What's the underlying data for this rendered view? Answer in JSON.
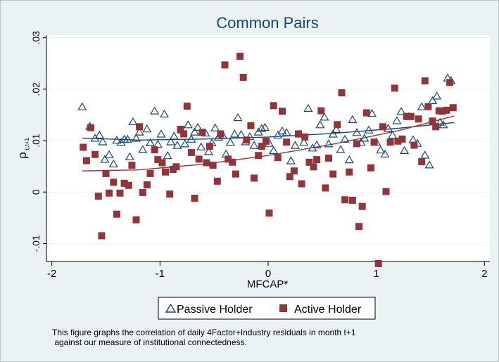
{
  "chart_data": {
    "type": "scatter",
    "title": "Common Pairs",
    "xlabel": "MFCAP*",
    "ylabel_main": "ρ",
    "ylabel_sub": "ij,t+1",
    "xlim": [
      -2.05,
      2.05
    ],
    "ylim": [
      -0.0135,
      0.0305
    ],
    "xticks": [
      -2,
      -1,
      0,
      1,
      2
    ],
    "xtick_labels": [
      "-2",
      "-1",
      "0",
      "1",
      "2"
    ],
    "yticks": [
      -0.01,
      0,
      0.01,
      0.02,
      0.03
    ],
    "ytick_labels": [
      "-.01",
      "0",
      ".01",
      ".02",
      ".03"
    ],
    "grid": "horizontal",
    "legend_position": "bottom",
    "series": [
      {
        "name": "Passive Holder",
        "marker": "hollow-triangle",
        "color": "#1a476f",
        "points": [
          [
            -1.72,
            0.0166
          ],
          [
            -1.65,
            0.0128
          ],
          [
            -1.6,
            0.0105
          ],
          [
            -1.56,
            0.0111
          ],
          [
            -1.53,
            0.0098
          ],
          [
            -1.51,
            0.0064
          ],
          [
            -1.47,
            0.0073
          ],
          [
            -1.43,
            0.0055
          ],
          [
            -1.4,
            0.0101
          ],
          [
            -1.36,
            0.0097
          ],
          [
            -1.33,
            0.0103
          ],
          [
            -1.3,
            0.0103
          ],
          [
            -1.28,
            0.0069
          ],
          [
            -1.25,
            0.0137
          ],
          [
            -1.22,
            0.0105
          ],
          [
            -1.19,
            0.0117
          ],
          [
            -1.16,
            0.0083
          ],
          [
            -1.12,
            0.0123
          ],
          [
            -1.09,
            0.0096
          ],
          [
            -1.05,
            0.0158
          ],
          [
            -1.02,
            0.0093
          ],
          [
            -0.99,
            0.0113
          ],
          [
            -0.96,
            0.0152
          ],
          [
            -0.93,
            0.0071
          ],
          [
            -0.9,
            0.0098
          ],
          [
            -0.87,
            0.0109
          ],
          [
            -0.84,
            0.0091
          ],
          [
            -0.8,
            0.0121
          ],
          [
            -0.77,
            0.0094
          ],
          [
            -0.74,
            0.0131
          ],
          [
            -0.71,
            0.0103
          ],
          [
            -0.68,
            0.0117
          ],
          [
            -0.65,
            0.0126
          ],
          [
            -0.62,
            0.0088
          ],
          [
            -0.58,
            0.0115
          ],
          [
            -0.55,
            0.0079
          ],
          [
            -0.52,
            0.0096
          ],
          [
            -0.49,
            0.0125
          ],
          [
            -0.46,
            0.0107
          ],
          [
            -0.42,
            0.0111
          ],
          [
            -0.39,
            0.0074
          ],
          [
            -0.35,
            0.0097
          ],
          [
            -0.31,
            0.0113
          ],
          [
            -0.28,
            0.0145
          ],
          [
            -0.25,
            0.0112
          ],
          [
            -0.21,
            0.0098
          ],
          [
            -0.17,
            0.0108
          ],
          [
            -0.13,
            0.0091
          ],
          [
            -0.09,
            0.0117
          ],
          [
            -0.06,
            0.0124
          ],
          [
            -0.03,
            0.0126
          ],
          [
            0.01,
            0.0095
          ],
          [
            0.05,
            0.0081
          ],
          [
            0.09,
            0.0111
          ],
          [
            0.13,
            0.0119
          ],
          [
            0.17,
            0.0116
          ],
          [
            0.21,
            0.0061
          ],
          [
            0.25,
            0.0091
          ],
          [
            0.29,
            0.0113
          ],
          [
            0.33,
            0.0097
          ],
          [
            0.37,
            0.0163
          ],
          [
            0.41,
            0.0086
          ],
          [
            0.45,
            0.0092
          ],
          [
            0.48,
            0.0131
          ],
          [
            0.52,
            0.0146
          ],
          [
            0.56,
            0.0094
          ],
          [
            0.6,
            0.0113
          ],
          [
            0.63,
            0.0122
          ],
          [
            0.67,
            0.0083
          ],
          [
            0.71,
            0.0103
          ],
          [
            0.75,
            0.0063
          ],
          [
            0.78,
            0.0141
          ],
          [
            0.82,
            0.0116
          ],
          [
            0.86,
            0.0097
          ],
          [
            0.89,
            0.0105
          ],
          [
            0.93,
            0.0121
          ],
          [
            0.96,
            0.0153
          ],
          [
            1.0,
            0.0097
          ],
          [
            1.04,
            0.0082
          ],
          [
            1.08,
            0.0074
          ],
          [
            1.11,
            0.0124
          ],
          [
            1.15,
            0.0111
          ],
          [
            1.19,
            0.0139
          ],
          [
            1.23,
            0.0157
          ],
          [
            1.26,
            0.0081
          ],
          [
            1.3,
            0.0147
          ],
          [
            1.34,
            0.0102
          ],
          [
            1.38,
            0.0095
          ],
          [
            1.42,
            0.0166
          ],
          [
            1.45,
            0.0072
          ],
          [
            1.49,
            0.0053
          ],
          [
            1.52,
            0.0178
          ],
          [
            1.56,
            0.0187
          ],
          [
            1.59,
            0.0136
          ],
          [
            1.62,
            0.0131
          ],
          [
            1.66,
            0.0222
          ],
          [
            1.69,
            0.0217
          ]
        ],
        "fit": [
          [
            -1.72,
            0.0105
          ],
          [
            -1.2,
            0.0101
          ],
          [
            -0.6,
            0.0103
          ],
          [
            0.0,
            0.0107
          ],
          [
            0.6,
            0.0114
          ],
          [
            1.2,
            0.0124
          ],
          [
            1.72,
            0.0135
          ]
        ]
      },
      {
        "name": "Active Holder",
        "marker": "filled-square",
        "color": "#90353b",
        "points": [
          [
            -1.71,
            0.0087
          ],
          [
            -1.68,
            0.0061
          ],
          [
            -1.64,
            0.0125
          ],
          [
            -1.6,
            0.0073
          ],
          [
            -1.57,
            -0.0008
          ],
          [
            -1.54,
            -0.0085
          ],
          [
            -1.5,
            0.0036
          ],
          [
            -1.47,
            -0.0002
          ],
          [
            -1.43,
            0.0019
          ],
          [
            -1.4,
            -0.0043
          ],
          [
            -1.37,
            -0.0002
          ],
          [
            -1.33,
            0.0017
          ],
          [
            -1.29,
            0.0013
          ],
          [
            -1.26,
            0.0052
          ],
          [
            -1.22,
            -0.0054
          ],
          [
            -1.19,
            0.0127
          ],
          [
            -1.16,
            -0.0001
          ],
          [
            -1.12,
            0.0014
          ],
          [
            -1.09,
            0.0036
          ],
          [
            -1.05,
            0.0082
          ],
          [
            -1.02,
            0.0063
          ],
          [
            -0.98,
            0.0057
          ],
          [
            -0.95,
            0.0039
          ],
          [
            -0.91,
            -0.0004
          ],
          [
            -0.88,
            0.0044
          ],
          [
            -0.85,
            0.0049
          ],
          [
            -0.81,
            0.0122
          ],
          [
            -0.78,
            0.0113
          ],
          [
            -0.75,
            0.0167
          ],
          [
            -0.71,
            0.0077
          ],
          [
            -0.68,
            -0.0012
          ],
          [
            -0.64,
            0.0064
          ],
          [
            -0.61,
            0.0116
          ],
          [
            -0.57,
            0.0057
          ],
          [
            -0.54,
            0.0089
          ],
          [
            -0.51,
            0.0052
          ],
          [
            -0.47,
            0.0021
          ],
          [
            -0.44,
            0.0113
          ],
          [
            -0.4,
            0.0247
          ],
          [
            -0.37,
            0.0064
          ],
          [
            -0.33,
            0.0058
          ],
          [
            -0.3,
            0.0035
          ],
          [
            -0.26,
            0.0264
          ],
          [
            -0.23,
            0.0223
          ],
          [
            -0.2,
            0.0101
          ],
          [
            -0.16,
            0.0129
          ],
          [
            -0.13,
            0.0027
          ],
          [
            -0.09,
            0.0071
          ],
          [
            -0.06,
            0.0089
          ],
          [
            -0.02,
            0.0099
          ],
          [
            0.01,
            -0.0041
          ],
          [
            0.05,
            0.0168
          ],
          [
            0.09,
            0.0067
          ],
          [
            0.13,
            0.0157
          ],
          [
            0.17,
            0.0097
          ],
          [
            0.2,
            0.003
          ],
          [
            0.24,
            0.0041
          ],
          [
            0.28,
            0.0113
          ],
          [
            0.31,
            0.0016
          ],
          [
            0.34,
            0.0107
          ],
          [
            0.38,
            0.0058
          ],
          [
            0.42,
            0.0049
          ],
          [
            0.45,
            0.0063
          ],
          [
            0.49,
            0.0158
          ],
          [
            0.53,
            0.0008
          ],
          [
            0.56,
            0.0066
          ],
          [
            0.6,
            0.0035
          ],
          [
            0.64,
            0.0131
          ],
          [
            0.68,
            0.0193
          ],
          [
            0.71,
            -0.0015
          ],
          [
            0.75,
            0.0039
          ],
          [
            0.78,
            -0.0016
          ],
          [
            0.82,
            0.0094
          ],
          [
            0.84,
            -0.0067
          ],
          [
            0.87,
            -0.0028
          ],
          [
            0.91,
            0.0154
          ],
          [
            0.95,
            0.0047
          ],
          [
            0.98,
            0.0097
          ],
          [
            1.02,
            -0.0139
          ],
          [
            1.06,
            0.0127
          ],
          [
            1.09,
            0.0001
          ],
          [
            1.13,
            0.0097
          ],
          [
            1.17,
            0.0202
          ],
          [
            1.2,
            0.0099
          ],
          [
            1.24,
            0.0103
          ],
          [
            1.28,
            0.0147
          ],
          [
            1.32,
            0.0147
          ],
          [
            1.35,
            0.0091
          ],
          [
            1.39,
            0.0142
          ],
          [
            1.42,
            0.0059
          ],
          [
            1.45,
            0.0216
          ],
          [
            1.48,
            0.0166
          ],
          [
            1.52,
            0.0138
          ],
          [
            1.55,
            0.0127
          ],
          [
            1.58,
            0.0158
          ],
          [
            1.61,
            0.0157
          ],
          [
            1.65,
            0.0159
          ],
          [
            1.68,
            0.0213
          ],
          [
            1.71,
            0.0164
          ]
        ],
        "fit": [
          [
            -1.72,
            0.0041
          ],
          [
            -1.2,
            0.0043
          ],
          [
            -0.6,
            0.0054
          ],
          [
            0.0,
            0.0071
          ],
          [
            0.6,
            0.0093
          ],
          [
            1.2,
            0.0119
          ],
          [
            1.72,
            0.0148
          ]
        ]
      }
    ]
  },
  "note": {
    "line1": "This figure graphs the correlation of daily 4Factor+Industry residuals in month t+1",
    "line2": " against our measure of institutional connectedness."
  }
}
